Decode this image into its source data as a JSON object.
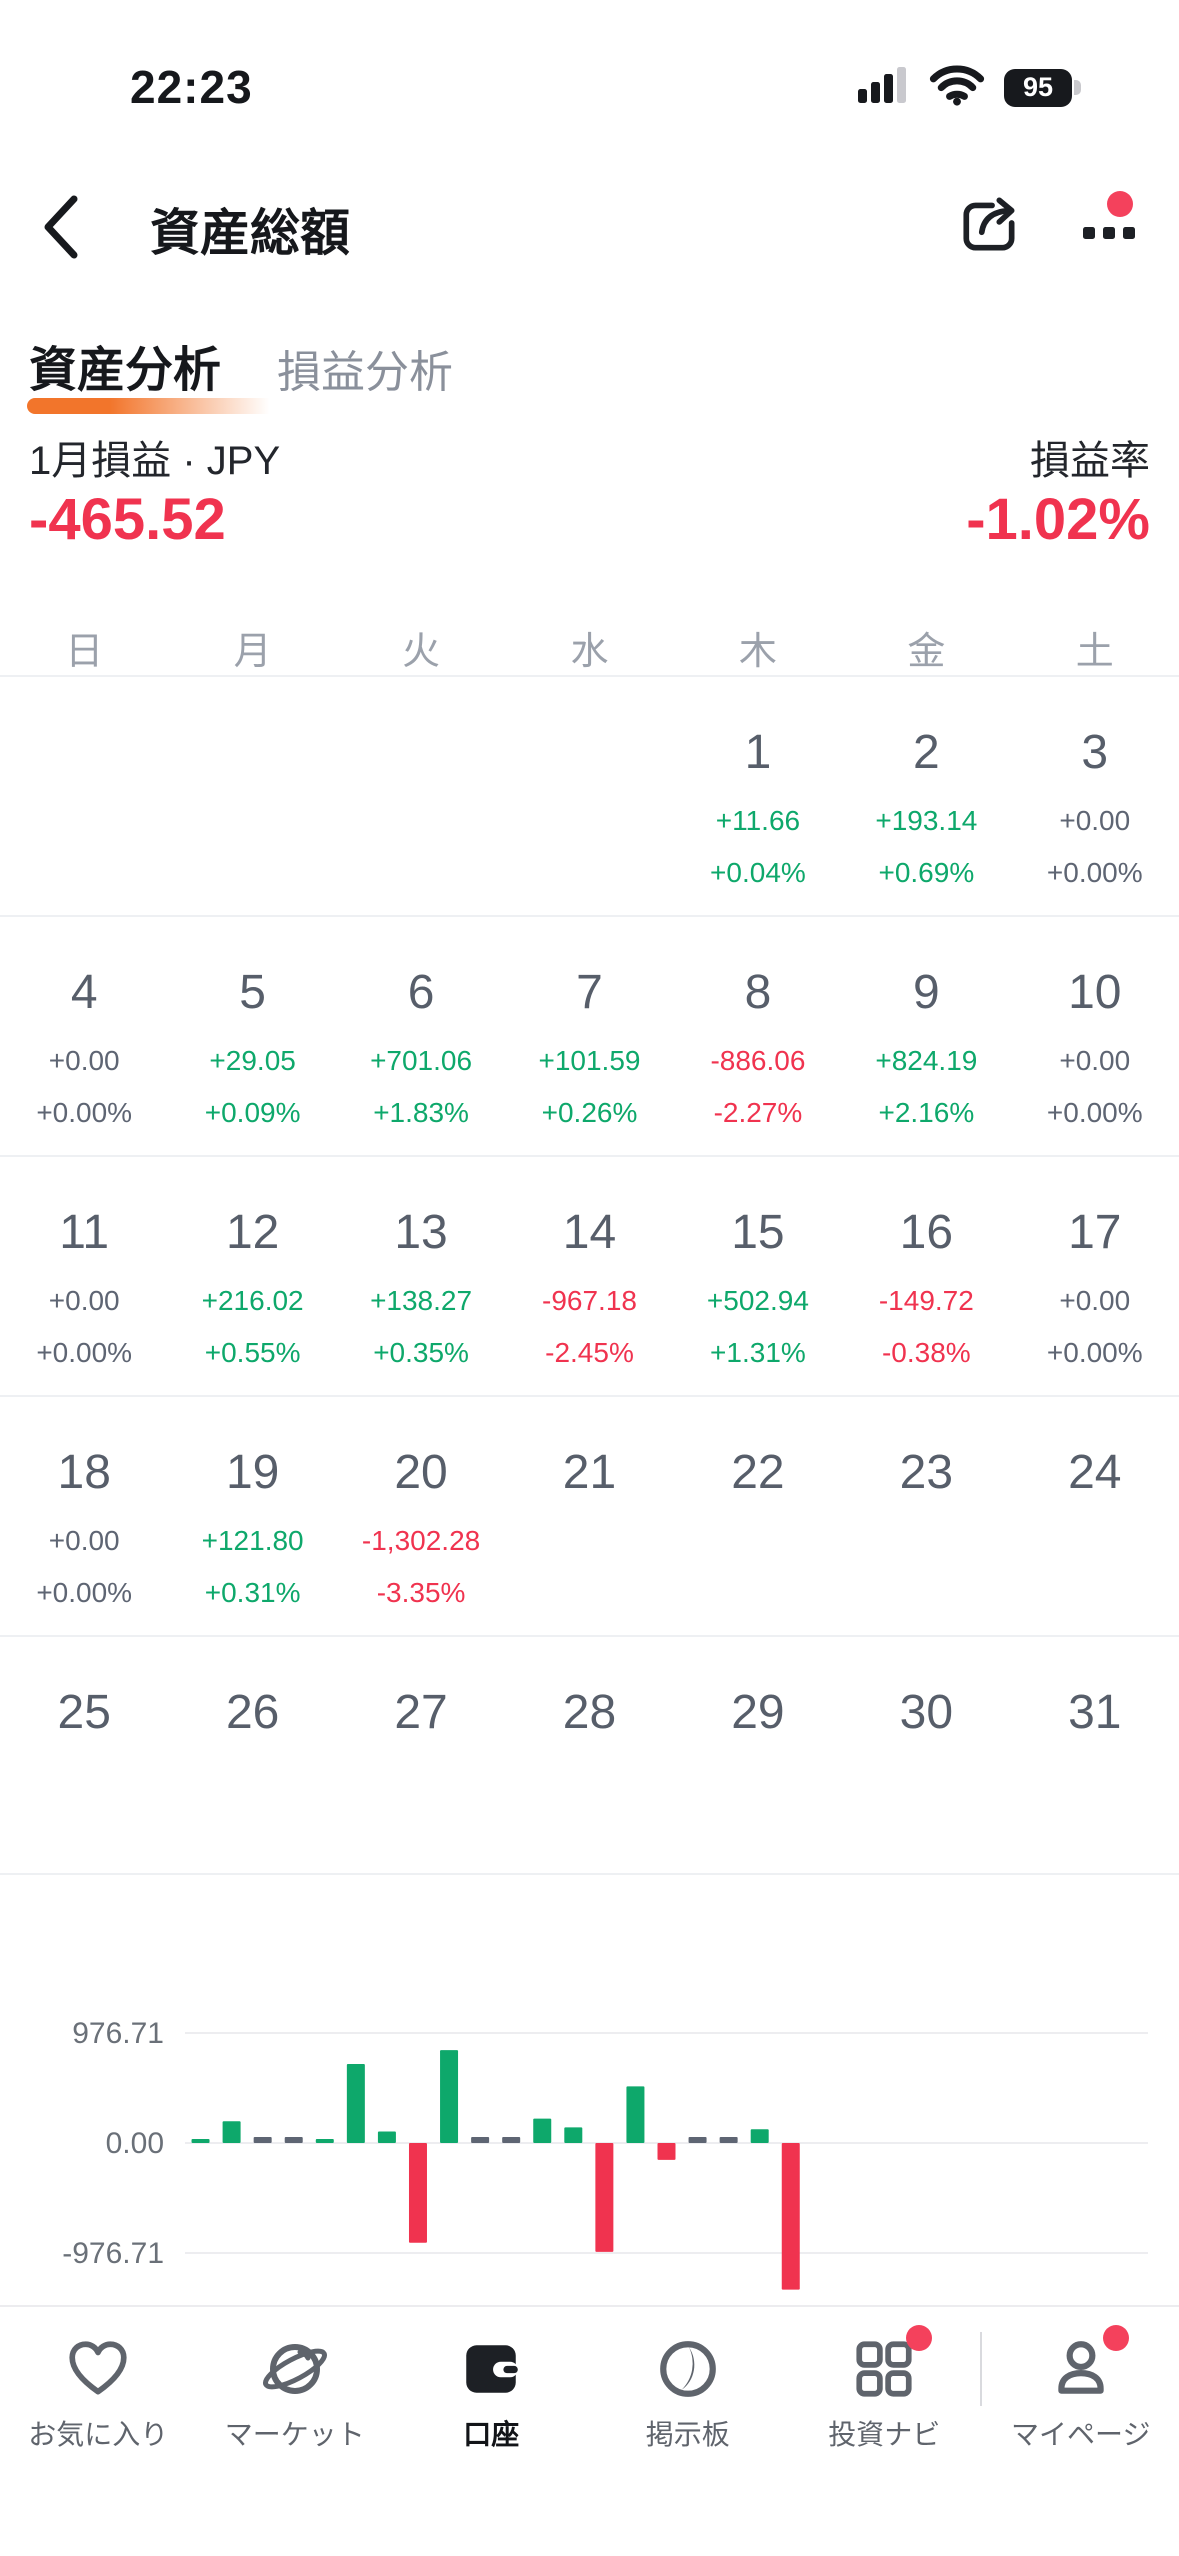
{
  "status_bar": {
    "time": "22:23",
    "battery_level": "95"
  },
  "header": {
    "title": "資産総額"
  },
  "tabs": [
    {
      "label": "資産分析",
      "active": true
    },
    {
      "label": "損益分析",
      "active": false
    }
  ],
  "summary": {
    "label_left": "1月損益 · JPY",
    "label_right": "損益率",
    "value": "-465.52",
    "rate": "-1.02%"
  },
  "calendar": {
    "weekdays": [
      "日",
      "月",
      "火",
      "水",
      "木",
      "金",
      "土"
    ],
    "start_offset": 4,
    "days": [
      {
        "day": 1,
        "value": "+11.66",
        "pct": "+0.04%",
        "sign": "pos"
      },
      {
        "day": 2,
        "value": "+193.14",
        "pct": "+0.69%",
        "sign": "pos"
      },
      {
        "day": 3,
        "value": "+0.00",
        "pct": "+0.00%",
        "sign": "zero"
      },
      {
        "day": 4,
        "value": "+0.00",
        "pct": "+0.00%",
        "sign": "zero"
      },
      {
        "day": 5,
        "value": "+29.05",
        "pct": "+0.09%",
        "sign": "pos"
      },
      {
        "day": 6,
        "value": "+701.06",
        "pct": "+1.83%",
        "sign": "pos"
      },
      {
        "day": 7,
        "value": "+101.59",
        "pct": "+0.26%",
        "sign": "pos"
      },
      {
        "day": 8,
        "value": "-886.06",
        "pct": "-2.27%",
        "sign": "neg"
      },
      {
        "day": 9,
        "value": "+824.19",
        "pct": "+2.16%",
        "sign": "pos"
      },
      {
        "day": 10,
        "value": "+0.00",
        "pct": "+0.00%",
        "sign": "zero"
      },
      {
        "day": 11,
        "value": "+0.00",
        "pct": "+0.00%",
        "sign": "zero"
      },
      {
        "day": 12,
        "value": "+216.02",
        "pct": "+0.55%",
        "sign": "pos"
      },
      {
        "day": 13,
        "value": "+138.27",
        "pct": "+0.35%",
        "sign": "pos"
      },
      {
        "day": 14,
        "value": "-967.18",
        "pct": "-2.45%",
        "sign": "neg"
      },
      {
        "day": 15,
        "value": "+502.94",
        "pct": "+1.31%",
        "sign": "pos"
      },
      {
        "day": 16,
        "value": "-149.72",
        "pct": "-0.38%",
        "sign": "neg"
      },
      {
        "day": 17,
        "value": "+0.00",
        "pct": "+0.00%",
        "sign": "zero"
      },
      {
        "day": 18,
        "value": "+0.00",
        "pct": "+0.00%",
        "sign": "zero"
      },
      {
        "day": 19,
        "value": "+121.80",
        "pct": "+0.31%",
        "sign": "pos"
      },
      {
        "day": 20,
        "value": "-1,302.28",
        "pct": "-3.35%",
        "sign": "neg"
      },
      {
        "day": 21
      },
      {
        "day": 22
      },
      {
        "day": 23
      },
      {
        "day": 24
      },
      {
        "day": 25
      },
      {
        "day": 26
      },
      {
        "day": 27
      },
      {
        "day": 28
      },
      {
        "day": 29
      },
      {
        "day": 30
      },
      {
        "day": 31
      }
    ]
  },
  "chart_data": {
    "type": "bar",
    "x": [
      1,
      2,
      3,
      4,
      5,
      6,
      7,
      8,
      9,
      10,
      11,
      12,
      13,
      14,
      15,
      16,
      17,
      18,
      19,
      20,
      21,
      22,
      23,
      24,
      25,
      26,
      27,
      28,
      29,
      30,
      31
    ],
    "values": [
      11.66,
      193.14,
      0,
      0,
      29.05,
      701.06,
      101.59,
      -886.06,
      824.19,
      0,
      0,
      216.02,
      138.27,
      -967.18,
      502.94,
      -149.72,
      0,
      0,
      121.8,
      -1302.28,
      null,
      null,
      null,
      null,
      null,
      null,
      null,
      null,
      null,
      null,
      null
    ],
    "ytick_labels": [
      "976.71",
      "0.00",
      "-976.71"
    ],
    "yticks": [
      976.71,
      0,
      -976.71
    ],
    "ylim": [
      -1400,
      976.71
    ],
    "grid": true,
    "legend": false
  },
  "nav": {
    "items": [
      {
        "label": "お気に入り",
        "icon": "heart-icon",
        "active": false,
        "badge": false
      },
      {
        "label": "マーケット",
        "icon": "planet-icon",
        "active": false,
        "badge": false
      },
      {
        "label": "口座",
        "icon": "wallet-icon",
        "active": true,
        "badge": false
      },
      {
        "label": "掲示板",
        "icon": "board-icon",
        "active": false,
        "badge": false
      },
      {
        "label": "投資ナビ",
        "icon": "grid-icon",
        "active": false,
        "badge": true
      },
      {
        "label": "マイページ",
        "icon": "person-icon",
        "active": false,
        "badge": true
      }
    ]
  },
  "colors": {
    "gain_green": "#0EA86B",
    "loss_red": "#F0334F",
    "zero_slate": "#5E6573",
    "accent_orange": "#F2752B",
    "badge_red": "#F4415C",
    "gridline": "#ededf0",
    "axis_label": "#6a7078"
  }
}
